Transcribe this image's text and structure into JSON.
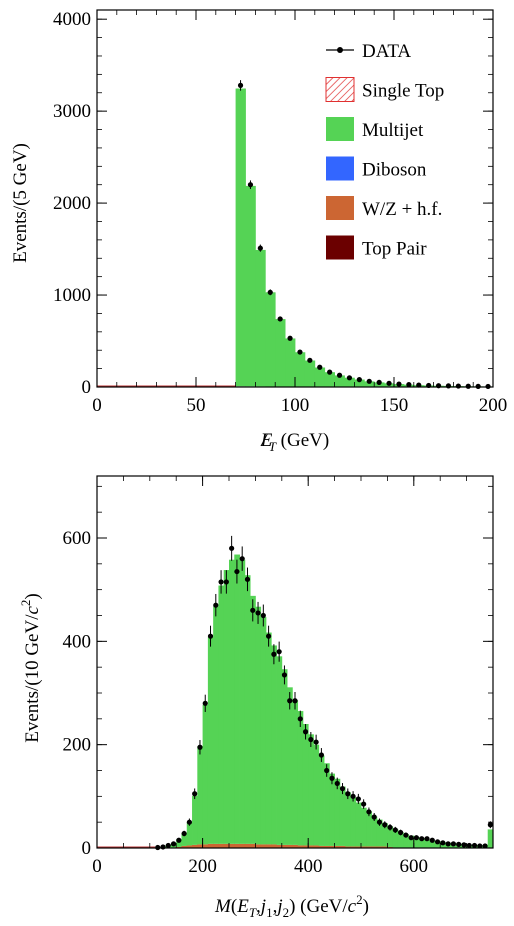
{
  "chart_data": [
    {
      "type": "bar",
      "stacked": true,
      "xlabel": "E̸T (GeV)",
      "ylabel": "Events/(5 GeV)",
      "xlim": [
        0,
        200
      ],
      "ylim": [
        0,
        4100
      ],
      "xticks": [
        "0",
        "50",
        "100",
        "150",
        "200"
      ],
      "yticks": [
        "0",
        "1000",
        "2000",
        "3000",
        "4000"
      ],
      "bin_width": 5,
      "x": [
        70,
        75,
        80,
        85,
        90,
        95,
        100,
        105,
        110,
        115,
        120,
        125,
        130,
        135,
        140,
        145,
        150,
        155,
        160,
        165,
        170,
        175,
        180,
        185,
        190,
        195
      ],
      "series": [
        {
          "name": "Top Pair",
          "color": "#6b0000",
          "values": [
            1,
            1,
            1,
            1,
            1,
            1,
            1,
            1,
            1,
            0,
            0,
            0,
            0,
            0,
            0,
            0,
            0,
            0,
            0,
            0,
            0,
            0,
            0,
            0,
            0,
            0
          ]
        },
        {
          "name": "W/Z + h.f.",
          "color": "#cc6633",
          "values": [
            6,
            5,
            4,
            3,
            3,
            2,
            2,
            2,
            1,
            1,
            1,
            1,
            1,
            1,
            0,
            0,
            0,
            0,
            0,
            0,
            0,
            0,
            0,
            0,
            0,
            0
          ]
        },
        {
          "name": "Diboson",
          "color": "#3366ff",
          "values": [
            1,
            1,
            1,
            1,
            0,
            0,
            0,
            0,
            0,
            0,
            0,
            0,
            0,
            0,
            0,
            0,
            0,
            0,
            0,
            0,
            0,
            0,
            0,
            0,
            0,
            0
          ]
        },
        {
          "name": "Multijet",
          "color": "#55d355",
          "values": [
            3238,
            2180,
            1485,
            1025,
            735,
            525,
            375,
            285,
            210,
            160,
            125,
            100,
            80,
            60,
            50,
            40,
            32,
            25,
            20,
            17,
            14,
            12,
            10,
            8,
            7,
            6
          ]
        },
        {
          "name": "Single Top",
          "color": "#e03030",
          "values": [
            1,
            1,
            1,
            1,
            1,
            0,
            0,
            0,
            0,
            0,
            0,
            0,
            0,
            0,
            0,
            0,
            0,
            0,
            0,
            0,
            0,
            0,
            0,
            0,
            0,
            0
          ]
        }
      ],
      "data_points": {
        "name": "DATA",
        "values": [
          3280,
          2200,
          1510,
          1030,
          740,
          530,
          380,
          290,
          215,
          162,
          128,
          100,
          80,
          62,
          50,
          40,
          32,
          26,
          21,
          17,
          14,
          12,
          10,
          8,
          7,
          6
        ]
      },
      "legend": {
        "placement": "top-right",
        "entries": [
          {
            "label": "DATA",
            "kind": "marker"
          },
          {
            "label": "Single Top",
            "kind": "hatched",
            "color": "#e03030"
          },
          {
            "label": "Multijet",
            "kind": "fill",
            "color": "#55d355"
          },
          {
            "label": "Diboson",
            "kind": "fill",
            "color": "#3366ff"
          },
          {
            "label": "W/Z + h.f.",
            "kind": "fill",
            "color": "#cc6633"
          },
          {
            "label": "Top Pair",
            "kind": "fill",
            "color": "#6b0000"
          }
        ]
      }
    },
    {
      "type": "bar",
      "stacked": true,
      "xlabel": "M(E̸T, j1, j2) (GeV/c²)",
      "ylabel": "Events/(10 GeV/c²)",
      "xlim": [
        0,
        750
      ],
      "ylim": [
        0,
        720
      ],
      "xticks": [
        "0",
        "200",
        "400",
        "600"
      ],
      "yticks": [
        "0",
        "200",
        "400",
        "600"
      ],
      "bin_width": 10,
      "x": [
        110,
        120,
        130,
        140,
        150,
        160,
        170,
        180,
        190,
        200,
        210,
        220,
        230,
        240,
        250,
        260,
        270,
        280,
        290,
        300,
        310,
        320,
        330,
        340,
        350,
        360,
        370,
        380,
        390,
        400,
        410,
        420,
        430,
        440,
        450,
        460,
        470,
        480,
        490,
        500,
        510,
        520,
        530,
        540,
        550,
        560,
        570,
        580,
        590,
        600,
        610,
        620,
        630,
        640,
        650,
        660,
        670,
        680,
        690,
        700,
        710,
        720,
        730,
        740
      ],
      "series": [
        {
          "name": "Top Pair",
          "color": "#6b0000",
          "values": [
            0,
            0,
            0,
            0,
            0,
            1,
            1,
            1,
            1,
            1,
            1,
            1,
            1,
            1,
            1,
            1,
            1,
            1,
            1,
            1,
            1,
            1,
            1,
            1,
            1,
            1,
            1,
            1,
            1,
            1,
            1,
            1,
            1,
            1,
            1,
            1,
            1,
            1,
            1,
            1,
            1,
            1,
            1,
            1,
            1,
            0,
            0,
            0,
            0,
            0,
            0,
            0,
            0,
            0,
            0,
            0,
            0,
            0,
            0,
            0,
            0,
            0,
            0,
            0
          ]
        },
        {
          "name": "W/Z + h.f.",
          "color": "#cc6633",
          "values": [
            0,
            1,
            1,
            1,
            2,
            3,
            4,
            5,
            6,
            6,
            7,
            7,
            7,
            7,
            7,
            7,
            7,
            7,
            7,
            6,
            6,
            6,
            6,
            5,
            5,
            5,
            5,
            4,
            4,
            4,
            4,
            3,
            3,
            3,
            3,
            3,
            2,
            2,
            2,
            2,
            2,
            2,
            2,
            2,
            1,
            1,
            1,
            1,
            1,
            1,
            1,
            1,
            1,
            1,
            1,
            1,
            1,
            1,
            1,
            1,
            1,
            1,
            1,
            1
          ]
        },
        {
          "name": "Diboson",
          "color": "#3366ff",
          "values": [
            0,
            0,
            0,
            0,
            0,
            0,
            0,
            0,
            0,
            0,
            0,
            0,
            0,
            0,
            0,
            0,
            0,
            0,
            0,
            0,
            0,
            0,
            0,
            0,
            0,
            0,
            0,
            0,
            0,
            0,
            0,
            0,
            0,
            0,
            0,
            0,
            0,
            0,
            0,
            0,
            0,
            0,
            0,
            0,
            0,
            0,
            0,
            0,
            0,
            0,
            0,
            0,
            0,
            0,
            0,
            0,
            0,
            0,
            0,
            0,
            0,
            0,
            0,
            0
          ]
        },
        {
          "name": "Multijet",
          "color": "#55d355",
          "values": [
            1,
            2,
            5,
            8,
            15,
            25,
            45,
            95,
            190,
            270,
            400,
            460,
            500,
            530,
            550,
            560,
            550,
            520,
            480,
            460,
            440,
            410,
            385,
            365,
            340,
            305,
            280,
            260,
            235,
            215,
            195,
            175,
            160,
            140,
            130,
            115,
            105,
            95,
            85,
            75,
            68,
            58,
            52,
            45,
            40,
            35,
            30,
            26,
            23,
            20,
            18,
            15,
            13,
            12,
            10,
            9,
            8,
            7,
            6,
            5,
            5,
            4,
            4,
            35
          ]
        },
        {
          "name": "Single Top",
          "color": "#e03030",
          "values": [
            0,
            0,
            0,
            0,
            0,
            0,
            0,
            0,
            0,
            0,
            0,
            0,
            0,
            0,
            0,
            0,
            0,
            0,
            0,
            0,
            0,
            0,
            0,
            0,
            0,
            0,
            0,
            0,
            0,
            0,
            0,
            0,
            0,
            0,
            0,
            0,
            0,
            0,
            0,
            0,
            0,
            0,
            0,
            0,
            0,
            0,
            0,
            0,
            0,
            0,
            0,
            0,
            0,
            0,
            0,
            0,
            0,
            0,
            0,
            0,
            0,
            0,
            0,
            0
          ]
        }
      ],
      "data_points": {
        "name": "DATA",
        "values": [
          1,
          2,
          5,
          8,
          15,
          28,
          50,
          105,
          195,
          280,
          410,
          470,
          515,
          515,
          580,
          535,
          560,
          520,
          460,
          455,
          450,
          410,
          375,
          380,
          335,
          285,
          285,
          250,
          225,
          210,
          205,
          180,
          150,
          135,
          125,
          115,
          105,
          100,
          95,
          85,
          70,
          60,
          50,
          45,
          40,
          35,
          30,
          25,
          20,
          20,
          18,
          18,
          15,
          12,
          10,
          8,
          8,
          7,
          6,
          5,
          5,
          4,
          4,
          45
        ]
      }
    }
  ]
}
